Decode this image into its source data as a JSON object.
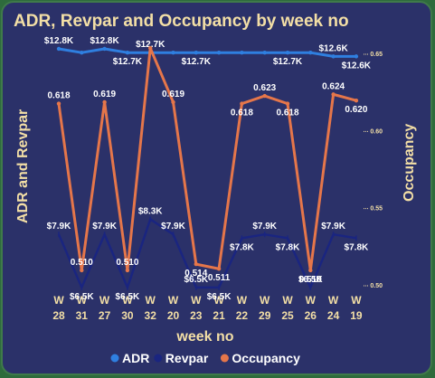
{
  "chart_data": {
    "type": "line",
    "title": "ADR, Revpar and Occupancy by week no",
    "xlabel": "week no",
    "ylabel_left": "ADR and Revpar",
    "ylabel_right": "Occupancy",
    "categories": [
      "W 28",
      "W 31",
      "W 27",
      "W 30",
      "W 32",
      "W 20",
      "W 23",
      "W 21",
      "W 22",
      "W 29",
      "W 25",
      "W 26",
      "W 24",
      "W 19"
    ],
    "series": [
      {
        "name": "ADR",
        "axis": "left",
        "color": "#2f7fe0",
        "values": [
          12800,
          12700,
          12800,
          12700,
          12700,
          12700,
          12700,
          12700,
          12700,
          12700,
          12700,
          12700,
          12600,
          12600
        ],
        "labels": [
          "$12.8K",
          "",
          "$12.8K",
          "$12.7K",
          "$12.7K",
          "",
          "$12.7K",
          "",
          "",
          "",
          "$12.7K",
          "",
          "$12.6K",
          "$12.6K"
        ]
      },
      {
        "name": "Revpar",
        "axis": "left",
        "color": "#1a2580",
        "values": [
          7900,
          6500,
          7900,
          6500,
          8300,
          7900,
          6500,
          6500,
          7800,
          7900,
          7800,
          6500,
          7900,
          7800
        ],
        "labels": [
          "$7.9K",
          "$6.5K",
          "$7.9K",
          "$6.5K",
          "$8.3K",
          "$7.9K",
          "$6.5K",
          "$6.5K",
          "$7.8K",
          "$7.9K",
          "$7.8K",
          "$6.5K",
          "$7.9K",
          "$7.8K"
        ]
      },
      {
        "name": "Occupancy",
        "axis": "right",
        "color": "#e5764a",
        "values": [
          0.618,
          0.51,
          0.619,
          0.51,
          0.654,
          0.619,
          0.514,
          0.511,
          0.618,
          0.623,
          0.618,
          0.51,
          0.624,
          0.62
        ],
        "labels": [
          "0.618",
          "0.510",
          "0.619",
          "0.510",
          "",
          "0.619",
          "0.514",
          "0.511",
          "0.618",
          "0.623",
          "0.618",
          "0.510",
          "0.624",
          "0.620"
        ]
      }
    ],
    "right_ticks": [
      "0.65",
      "0.60",
      "0.55",
      "0.50"
    ],
    "right_ylim": [
      0.5,
      0.65
    ],
    "legend_position": "bottom"
  }
}
